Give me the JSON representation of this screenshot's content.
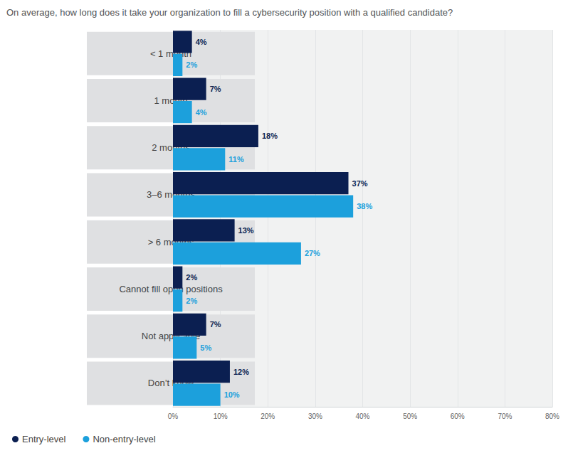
{
  "chart_data": {
    "type": "bar",
    "orientation": "horizontal",
    "title": "On average, how long does it take your organization to fill a cybersecurity position with a qualified candidate?",
    "categories": [
      "< 1 month",
      "1 month",
      "2 months",
      "3–6 months",
      "> 6 months",
      "Cannot fill open positions",
      "Not applicable",
      "Don’t know"
    ],
    "series": [
      {
        "name": "Entry-level",
        "color": "#0b1f51",
        "values": [
          4,
          7,
          18,
          37,
          13,
          2,
          7,
          12
        ],
        "value_labels": [
          "4%",
          "7%",
          "18%",
          "37%",
          "13%",
          "2%",
          "7%",
          "12%"
        ]
      },
      {
        "name": "Non-entry-level",
        "color": "#1ca0dc",
        "values": [
          2,
          4,
          11,
          38,
          27,
          2,
          5,
          10
        ],
        "value_labels": [
          "2%",
          "4%",
          "11%",
          "38%",
          "27%",
          "2%",
          "5%",
          "10%"
        ]
      }
    ],
    "xlim": [
      0,
      80
    ],
    "xticks": [
      {
        "value": 0,
        "label": "0%"
      },
      {
        "value": 10,
        "label": "10%"
      },
      {
        "value": 20,
        "label": "20%"
      },
      {
        "value": 30,
        "label": "30%"
      },
      {
        "value": 40,
        "label": "40%"
      },
      {
        "value": 50,
        "label": "50%"
      },
      {
        "value": 60,
        "label": "60%"
      },
      {
        "value": 70,
        "label": "70%"
      },
      {
        "value": 80,
        "label": "80%"
      }
    ],
    "grid": true,
    "legend": "bottom-left",
    "data_labels": true
  }
}
